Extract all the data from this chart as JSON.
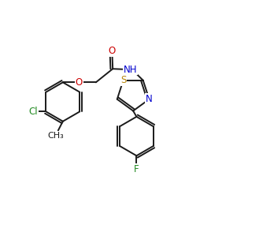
{
  "background_color": "#ffffff",
  "line_color": "#1a1a1a",
  "N_color": "#0000cd",
  "S_color": "#b8860b",
  "O_color": "#cc0000",
  "F_color": "#228B22",
  "Cl_color": "#228B22",
  "line_width": 1.4,
  "font_size": 8.5,
  "figsize": [
    3.48,
    3.18
  ],
  "dpi": 100,
  "xlim": [
    -0.5,
    7.5
  ],
  "ylim": [
    -1.5,
    4.5
  ]
}
